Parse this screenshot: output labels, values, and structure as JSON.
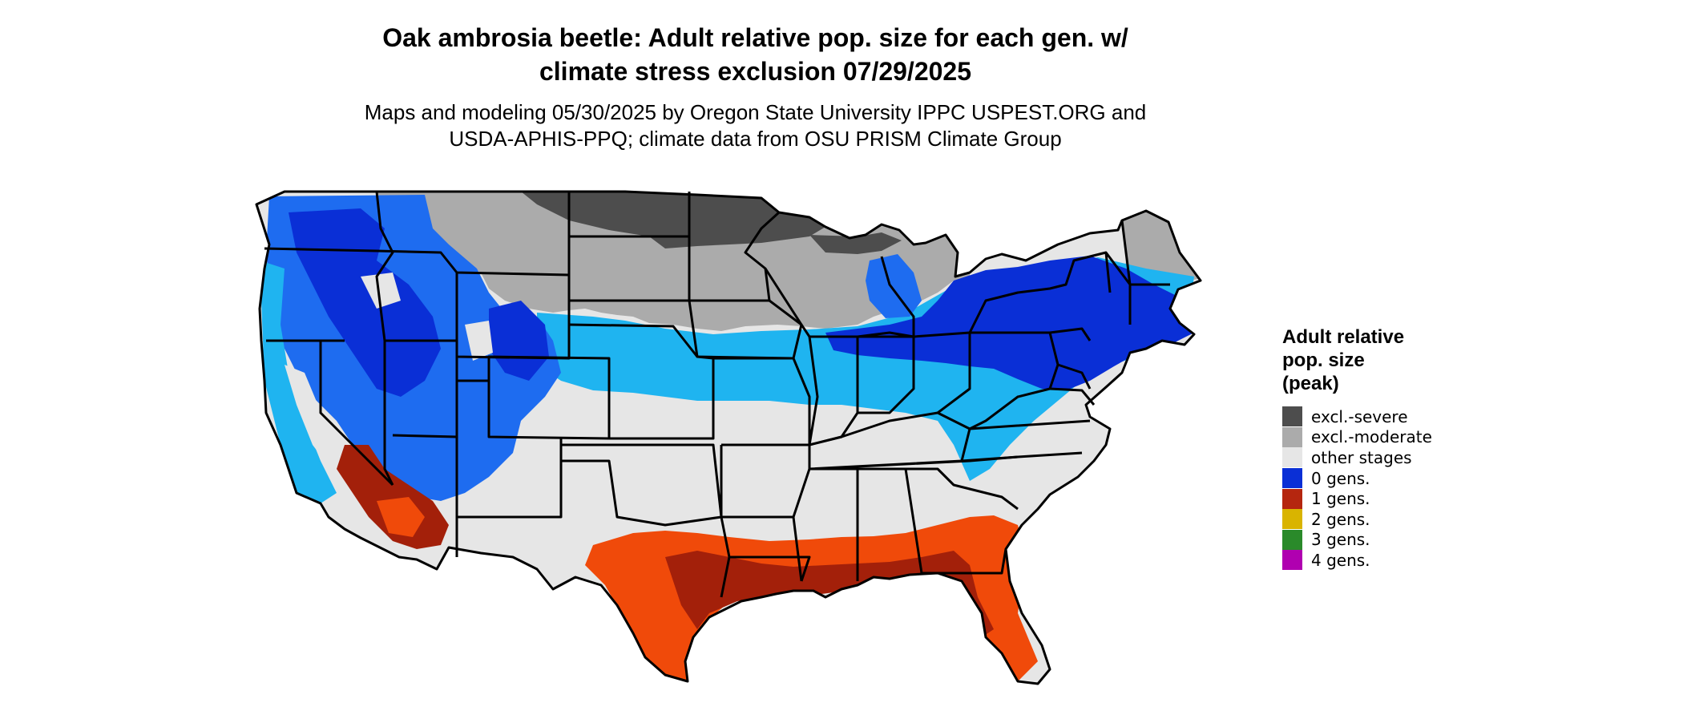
{
  "title": {
    "line1": "Oak ambrosia beetle: Adult relative pop. size for each gen. w/",
    "line2": "climate stress exclusion 07/29/2025"
  },
  "subtitle": {
    "line1": "Maps and modeling 05/30/2025 by Oregon State University IPPC USPEST.ORG and",
    "line2": "USDA-APHIS-PPQ; climate data from OSU PRISM Climate Group"
  },
  "legend": {
    "title_lines": [
      "Adult relative",
      "pop. size",
      "(peak)"
    ],
    "items": [
      {
        "label": "excl.-severe",
        "color": "#4d4d4d"
      },
      {
        "label": "excl.-moderate",
        "color": "#ababab"
      },
      {
        "label": "other stages",
        "color": "#e6e6e6"
      },
      {
        "label": "0 gens.",
        "color": "#0a2fd6"
      },
      {
        "label": "1 gens.",
        "color": "#b5260f"
      },
      {
        "label": "2 gens.",
        "color": "#d9b400"
      },
      {
        "label": "3 gens.",
        "color": "#2a8a2a"
      },
      {
        "label": "4 gens.",
        "color": "#b000b0"
      }
    ]
  },
  "map": {
    "colors": {
      "severe": "#4d4d4d",
      "moderate": "#ababab",
      "other": "#e6e6e6",
      "blue_dark": "#0a2fd6",
      "blue_mid": "#1e6cf0",
      "blue_light": "#1fb4f0",
      "red_dark": "#a3200a",
      "red_orange": "#f04a0a",
      "border": "#000000"
    }
  }
}
